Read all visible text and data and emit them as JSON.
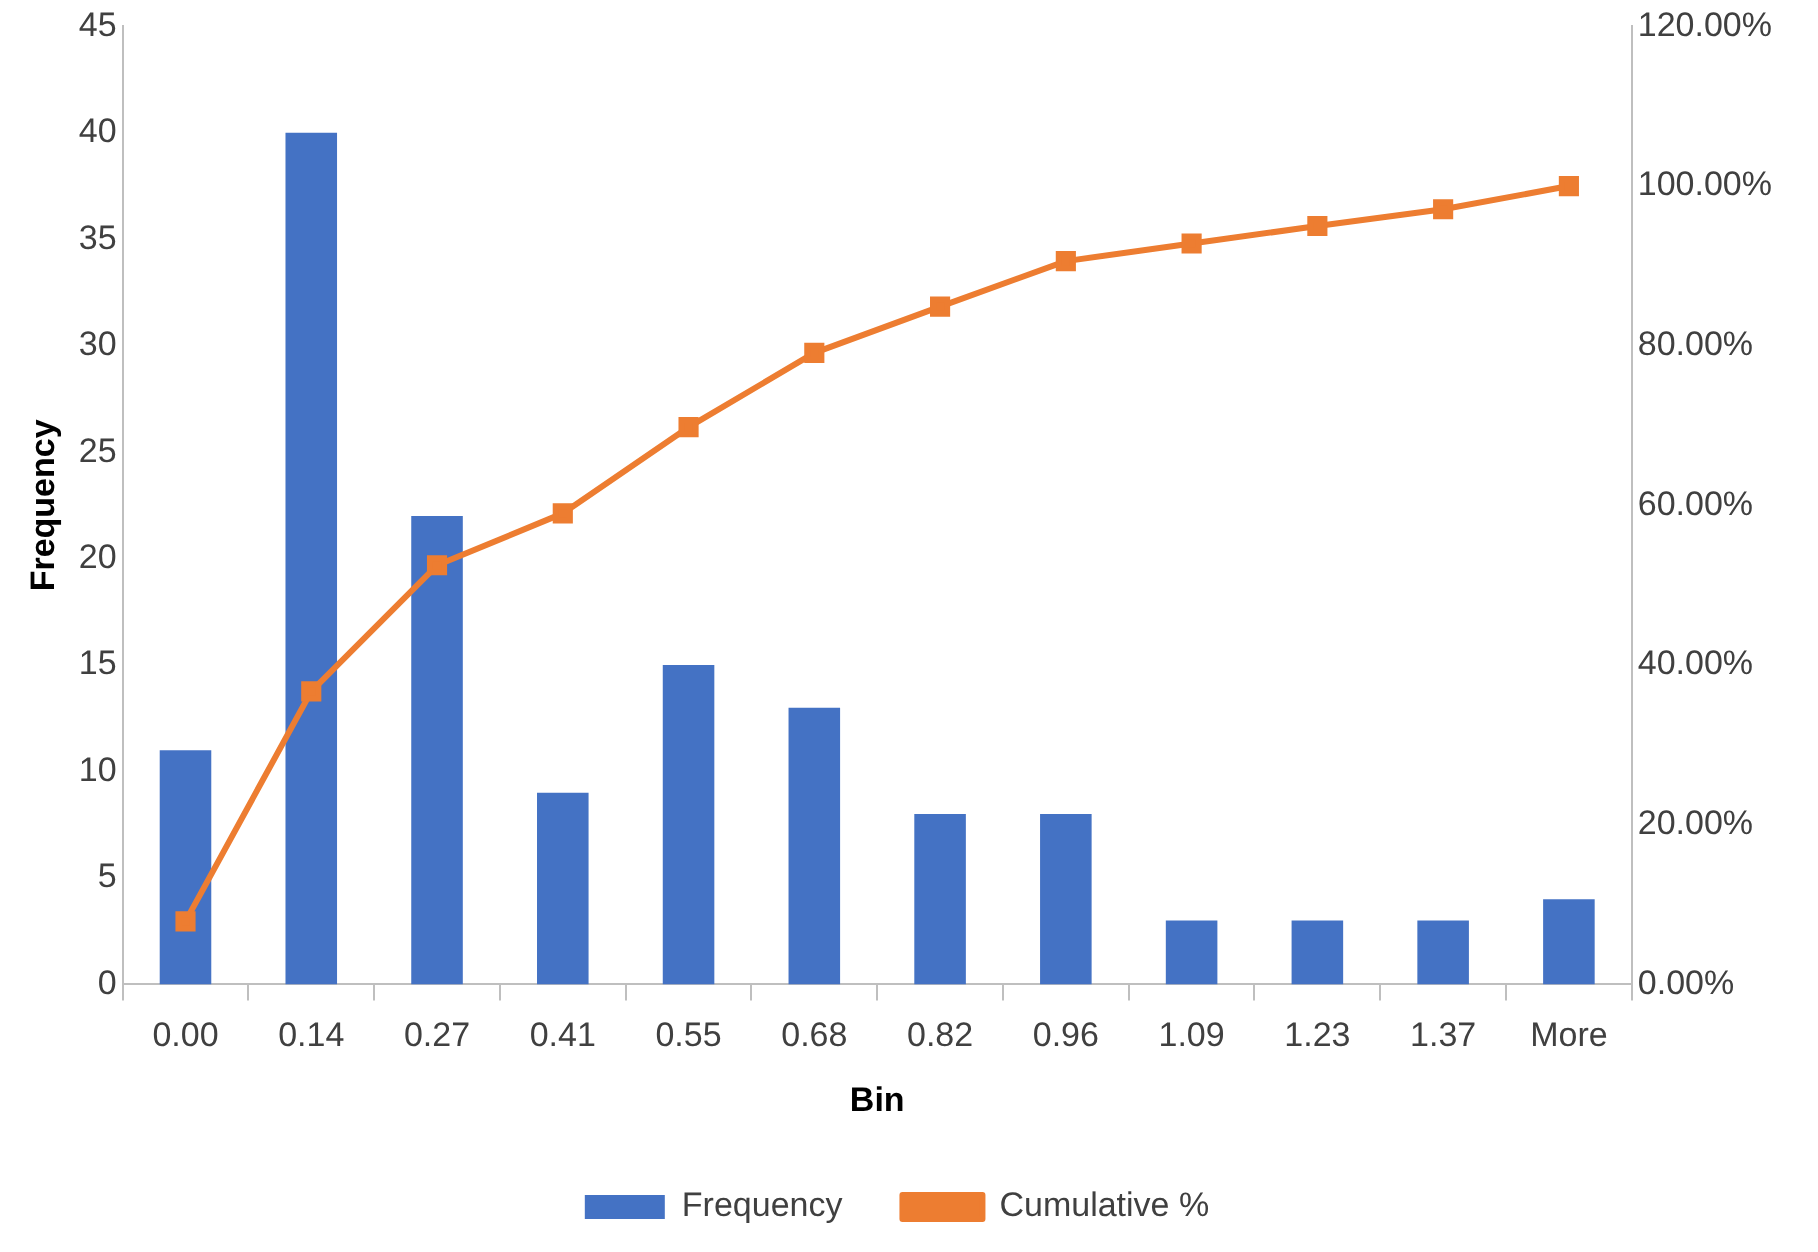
{
  "chart_data": {
    "type": "bar",
    "xlabel": "Bin",
    "ylabel": "Frequency",
    "categories": [
      "0.00",
      "0.14",
      "0.27",
      "0.41",
      "0.55",
      "0.68",
      "0.82",
      "0.96",
      "1.09",
      "1.23",
      "1.37",
      "More"
    ],
    "series": [
      {
        "name": "Frequency",
        "color": "#4472c4",
        "values": [
          11,
          40,
          22,
          9,
          15,
          13,
          8,
          8,
          3,
          3,
          3,
          4
        ]
      },
      {
        "name": "Cumulative %",
        "type": "line",
        "axis": "y2",
        "color": "#ed7d31",
        "values": [
          7.9,
          36.7,
          52.5,
          59,
          69.8,
          79.1,
          84.9,
          90.6,
          92.8,
          95,
          97.1,
          100
        ]
      }
    ],
    "ylim": [
      0,
      45
    ],
    "yticks": [
      0,
      5,
      10,
      15,
      20,
      25,
      30,
      35,
      40,
      45
    ],
    "y2lim": [
      0,
      120
    ],
    "y2ticks": [
      {
        "value": 0,
        "label": "0.00%"
      },
      {
        "value": 20,
        "label": "20.00%"
      },
      {
        "value": 40,
        "label": "40.00%"
      },
      {
        "value": 60,
        "label": "60.00%"
      },
      {
        "value": 80,
        "label": "80.00%"
      },
      {
        "value": 100,
        "label": "100.00%"
      },
      {
        "value": 120,
        "label": "120.00%"
      }
    ],
    "grid": false,
    "legend": "bottom",
    "marker": "square",
    "line_style": "solid"
  }
}
